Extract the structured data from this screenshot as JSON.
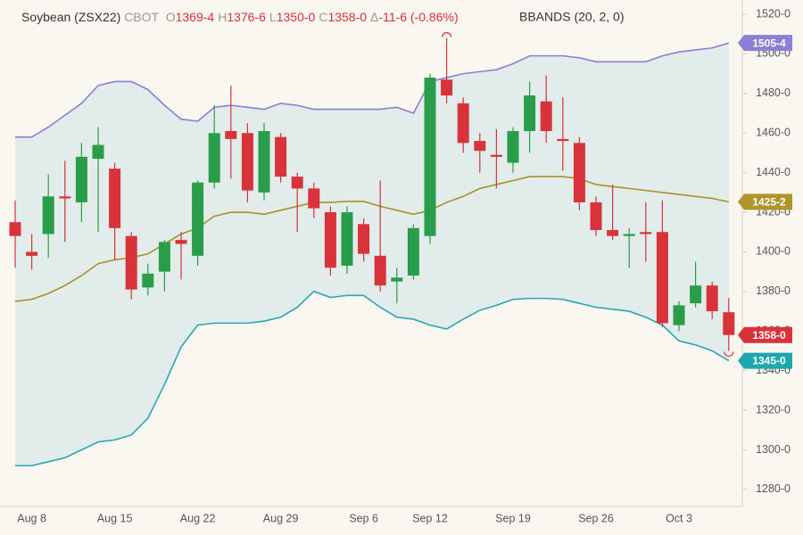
{
  "chart_data": {
    "type": "candlestick",
    "info": {
      "symbol": "Soybean (ZSX22)",
      "exchange": "CBOT",
      "items": [
        {
          "key": "O",
          "value": "1369-4"
        },
        {
          "key": "H",
          "value": "1376-6"
        },
        {
          "key": "L",
          "value": "1350-0"
        },
        {
          "key": "C",
          "value": "1358-0"
        },
        {
          "key": "Δ",
          "value": "-11-6 (-0.86%)"
        }
      ],
      "indicator": "BBANDS (20, 2, 0)"
    },
    "categories": [
      null,
      "Aug 8",
      null,
      null,
      null,
      null,
      "Aug 15",
      null,
      null,
      null,
      null,
      "Aug 22",
      null,
      null,
      null,
      null,
      "Aug 29",
      null,
      null,
      null,
      null,
      "Sep 6",
      null,
      null,
      null,
      "Sep 12",
      null,
      null,
      null,
      null,
      "Sep 19",
      null,
      null,
      null,
      null,
      "Sep 26",
      null,
      null,
      null,
      null,
      "Oct 3",
      null,
      null,
      null
    ],
    "open": [
      1415,
      1400,
      1409,
      1428,
      1425,
      1447,
      1442,
      1408,
      1382,
      1390,
      1406,
      1398,
      1435,
      1461,
      1460,
      1430,
      1458,
      1438,
      1432,
      1420,
      1393,
      1414,
      1398,
      1385,
      1388,
      1408,
      1487,
      1475,
      1456,
      1449,
      1445,
      1461,
      1476,
      1457,
      1455,
      1425,
      1411,
      1408,
      1410,
      1410,
      1363,
      1374,
      1383,
      1369.5
    ],
    "high": [
      1426,
      1409,
      1439,
      1446,
      1455,
      1463,
      1445,
      1410,
      1394,
      1406,
      1410,
      1436,
      1474,
      1484,
      1465,
      1465,
      1460,
      1440,
      1435,
      1423,
      1423,
      1417,
      1436,
      1392,
      1414,
      1490,
      1508,
      1478,
      1460,
      1462,
      1463,
      1486,
      1489,
      1478,
      1458,
      1428,
      1434,
      1412,
      1425,
      1426,
      1375,
      1395,
      1385,
      1376.75
    ],
    "low": [
      1392,
      1391,
      1397,
      1405,
      1415,
      1410,
      1396,
      1376,
      1378,
      1380,
      1386,
      1393,
      1432,
      1437,
      1425,
      1426,
      1435,
      1410,
      1417,
      1388,
      1389,
      1395,
      1380,
      1374,
      1386,
      1404,
      1475,
      1450,
      1440,
      1432,
      1440,
      1450,
      1455,
      1441,
      1421,
      1408,
      1406,
      1392,
      1395,
      1362,
      1360,
      1372,
      1366,
      1350
    ],
    "close": [
      1408,
      1398,
      1428,
      1427,
      1448,
      1454,
      1412,
      1381,
      1389,
      1405,
      1404,
      1435,
      1460,
      1457,
      1431,
      1461,
      1438,
      1432,
      1422,
      1392,
      1420,
      1399,
      1383,
      1387,
      1412,
      1488,
      1479,
      1455,
      1451,
      1448,
      1461,
      1479,
      1461,
      1456,
      1425,
      1411,
      1408,
      1409,
      1409,
      1364,
      1373,
      1383,
      1370,
      1358
    ],
    "up_color": "#2a9d4a",
    "down_color": "#d8323a",
    "bands": {
      "upper": [
        1458,
        1458,
        1463,
        1469,
        1475,
        1484,
        1486,
        1486,
        1482,
        1474,
        1467,
        1466,
        1473,
        1474,
        1473,
        1472,
        1475,
        1474,
        1472,
        1472,
        1472,
        1472,
        1472,
        1473,
        1470,
        1486,
        1488,
        1490,
        1491,
        1492,
        1495,
        1499,
        1499,
        1499,
        1498,
        1496,
        1496,
        1496,
        1496,
        1499,
        1501,
        1502,
        1503,
        1505.5
      ],
      "middle": [
        1375,
        1376,
        1379,
        1383,
        1388,
        1394,
        1396,
        1397,
        1399,
        1404,
        1409,
        1412,
        1418,
        1420,
        1420,
        1419,
        1421,
        1423,
        1425,
        1425,
        1425.5,
        1425.5,
        1423,
        1421,
        1419,
        1421,
        1425,
        1428,
        1432,
        1434,
        1436,
        1438,
        1438,
        1438,
        1437,
        1434,
        1433,
        1432,
        1431,
        1430,
        1429,
        1428,
        1427,
        1425.25
      ],
      "lower": [
        1292,
        1292,
        1294,
        1296,
        1300,
        1304,
        1305,
        1307.5,
        1316,
        1333,
        1352,
        1363,
        1364,
        1364,
        1364,
        1365,
        1367,
        1372,
        1380,
        1377,
        1378,
        1378,
        1372,
        1367,
        1366,
        1363,
        1361,
        1366,
        1370.5,
        1373,
        1376,
        1376.5,
        1376.5,
        1376,
        1374,
        1372,
        1371,
        1370,
        1367,
        1363,
        1355,
        1353,
        1350,
        1345
      ],
      "upper_color": "#8b7fd6",
      "middle_color": "#a8912a",
      "lower_color": "#2aa7b0",
      "fill_color": "#e2ecea"
    },
    "price_tags": [
      {
        "value": 1505.5,
        "label": "1505-4",
        "color": "#8b7fd6"
      },
      {
        "value": 1425.25,
        "label": "1425-2",
        "color": "#b0952a"
      },
      {
        "value": 1358,
        "label": "1358-0",
        "color": "#d8323a"
      },
      {
        "value": 1345,
        "label": "1345-0",
        "color": "#1fa7b0"
      }
    ],
    "ylim": [
      1271.4,
      1527.2
    ],
    "yticks": [
      {
        "value": 1280,
        "label": "1280-0"
      },
      {
        "value": 1300,
        "label": "1300-0"
      },
      {
        "value": 1320,
        "label": "1320-0"
      },
      {
        "value": 1340,
        "label": "1340-0"
      },
      {
        "value": 1360,
        "label": "1360-0"
      },
      {
        "value": 1380,
        "label": "1380-0"
      },
      {
        "value": 1400,
        "label": "1400-0"
      },
      {
        "value": 1420,
        "label": "1420-0"
      },
      {
        "value": 1440,
        "label": "1440-0"
      },
      {
        "value": 1460,
        "label": "1460-0"
      },
      {
        "value": 1480,
        "label": "1480-0"
      },
      {
        "value": 1500,
        "label": "1500-0"
      },
      {
        "value": 1520,
        "label": "1520-0"
      }
    ]
  }
}
